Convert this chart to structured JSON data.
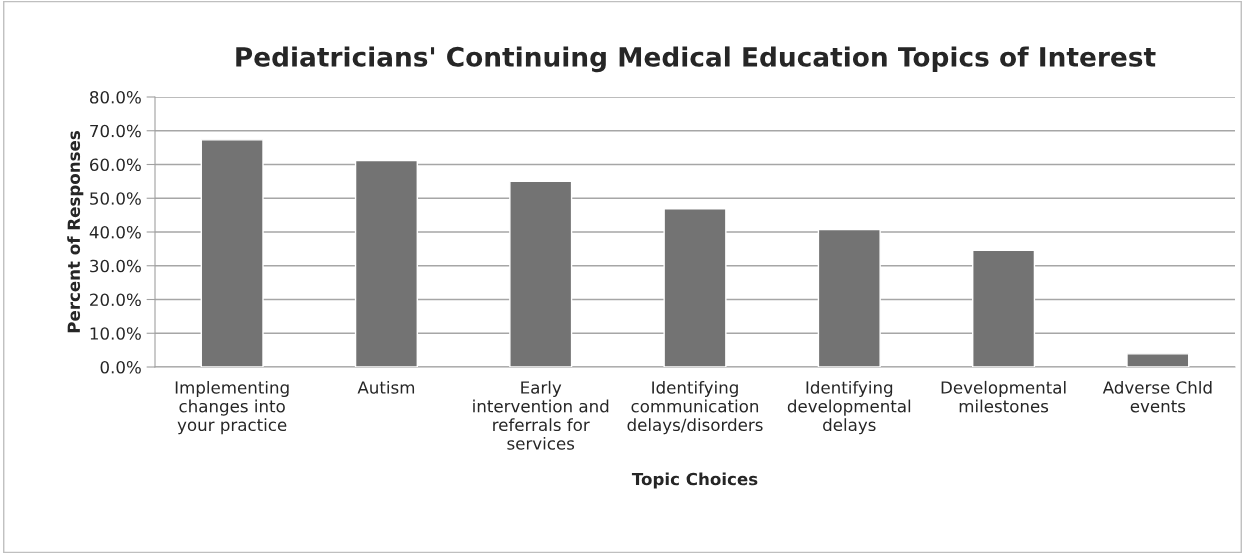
{
  "chart_data": {
    "type": "bar",
    "title": "Pediatricians' Continuing Medical Education Topics of Interest",
    "xlabel": "Topic Choices",
    "ylabel": "Percent of Responses",
    "categories": [
      "Implementing\nchanges into\nyour practice",
      "Autism",
      "Early\nintervention and\nreferrals for\nservices",
      "Identifying\ncommunication\ndelays/disorders",
      "Identifying\ndevelopmental\ndelays",
      "Developmental\nmilestones",
      "Adverse Chld\nevents"
    ],
    "values": [
      67.3,
      61.2,
      55.0,
      46.9,
      40.7,
      34.6,
      3.9
    ],
    "color": "#737373",
    "ylim": [
      0,
      80
    ],
    "yticks": [
      {
        "value": 0,
        "label": "0.0%"
      },
      {
        "value": 10,
        "label": "10.0%"
      },
      {
        "value": 20,
        "label": "20.0%"
      },
      {
        "value": 30,
        "label": "30.0%"
      },
      {
        "value": 40,
        "label": "40.0%"
      },
      {
        "value": 50,
        "label": "50.0%"
      },
      {
        "value": 60,
        "label": "60.0%"
      },
      {
        "value": 70,
        "label": "70.0%"
      },
      {
        "value": 80,
        "label": "80.0%"
      }
    ],
    "grid": "y",
    "legend": false
  }
}
